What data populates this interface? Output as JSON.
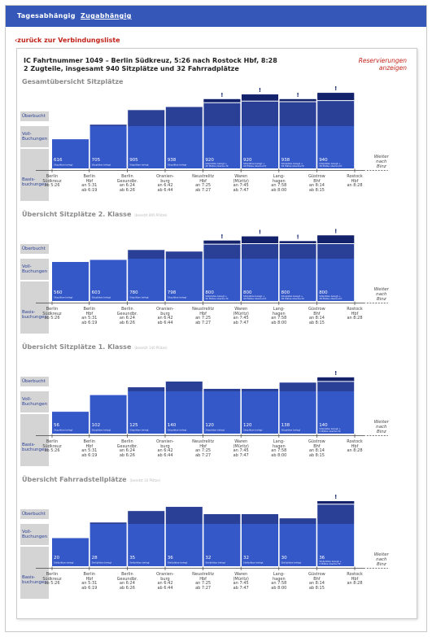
{
  "nav": {
    "tabs": [
      {
        "label": "Tagesabhängig",
        "active": false
      },
      {
        "label": "Zugabhängig",
        "active": true
      }
    ]
  },
  "back_link": "‹zurück zur Verbindungsliste",
  "header": {
    "line1": "IC Fahrtnummer 1049 – Berlin Südkreuz, 5:26 nach Rostock Hbf, 8:28",
    "line2": "2 Zugteile, insgesamt 940 Sitzplätze und 32 Fahrradplätze",
    "reserve_link_1": "Reservierungen",
    "reserve_link_2": "anzeigen"
  },
  "bands": {
    "ueberbucht": "Überbucht",
    "voll_1": "Voll-",
    "voll_2": "Buchungen",
    "basis_1": "Basis-",
    "basis_2": "buchungen"
  },
  "weiter": [
    "Weiter",
    "nach",
    "Binz"
  ],
  "excl_mark": "!",
  "stations": [
    {
      "n1": "Berlin",
      "n2": "Südkreuz",
      "t1": "ab 5:26",
      "t2": ""
    },
    {
      "n1": "Berlin",
      "n2": "Hbf",
      "t1": "an 5:31",
      "t2": "ab 6:19"
    },
    {
      "n1": "Berlin",
      "n2": "Gesundbr.",
      "t1": "an 6:24",
      "t2": "ab 6:26"
    },
    {
      "n1": "Oranien-",
      "n2": "burg",
      "t1": "an 6:42",
      "t2": "ab 6:44"
    },
    {
      "n1": "Neustrelitz",
      "n2": "Hbf",
      "t1": "an 7:25",
      "t2": "ab 7:27"
    },
    {
      "n1": "Waren",
      "n2": "(Müritz)",
      "t1": "an 7:45",
      "t2": "ab 7:47"
    },
    {
      "n1": "Lang-",
      "n2": "hagen",
      "t1": "an 7:58",
      "t2": "ab 8:00"
    },
    {
      "n1": "Güstrow",
      "n2": "Bhf",
      "t1": "an 8:14",
      "t2": "ab 8:15"
    },
    {
      "n1": "Rostock",
      "n2": "Hbf",
      "t1": "an 8:28",
      "t2": ""
    }
  ],
  "colors": {
    "base": "#3558c8",
    "full": "#2a3f96",
    "over": "#13226a",
    "band": "#d4d4d4"
  },
  "sections": [
    {
      "title": "Gesamtübersicht Sitzplätze",
      "subtitle": "",
      "bars": [
        {
          "value": "616",
          "l1": "Sitzplätze belegt",
          "l2": "",
          "level": 0.56,
          "over": 0
        },
        {
          "value": "705",
          "l1": "Sitzplätze belegt",
          "l2": "",
          "level": 0.84,
          "over": 0
        },
        {
          "value": "905",
          "l1": "Sitzplätze belegt",
          "l2": "",
          "level": 1.12,
          "over": 0
        },
        {
          "value": "938",
          "l1": "Sitzplätze belegt",
          "l2": "",
          "level": 1.18,
          "over": 0
        },
        {
          "value": "920",
          "l1": "Sitzplätze belegt +",
          "l2": "40 Plätze überbucht",
          "level": 1.33,
          "over": 0.06
        },
        {
          "value": "920",
          "l1": "Sitzplätze belegt +",
          "l2": "40 Plätze überbucht",
          "level": 1.42,
          "over": 0.12
        },
        {
          "value": "938",
          "l1": "Sitzplätze belegt +",
          "l2": "38 Plätze überbucht",
          "level": 1.33,
          "over": 0.04
        },
        {
          "value": "940",
          "l1": "Sitzplätze belegt +",
          "l2": "38 Plätze überbucht",
          "level": 1.45,
          "over": 0.14
        }
      ]
    },
    {
      "title": "Übersicht Sitzplätze 2. Klasse",
      "subtitle": "(besetzt 800 Plätze)",
      "bars": [
        {
          "value": "560",
          "l1": "Sitzplätze belegt",
          "l2": "",
          "level": 0.75,
          "over": 0
        },
        {
          "value": "603",
          "l1": "Sitzplätze belegt",
          "l2": "",
          "level": 0.79,
          "over": 0
        },
        {
          "value": "780",
          "l1": "Sitzplätze belegt",
          "l2": "",
          "level": 0.98,
          "over": 0
        },
        {
          "value": "798",
          "l1": "Sitzplätze belegt",
          "l2": "",
          "level": 0.95,
          "over": 0
        },
        {
          "value": "800",
          "l1": "Sitzplätze belegt +",
          "l2": "40 Plätze überbucht",
          "level": 1.16,
          "over": 0.06
        },
        {
          "value": "800",
          "l1": "Sitzplätze belegt +",
          "l2": "40 Plätze überbucht",
          "level": 1.24,
          "over": 0.13
        },
        {
          "value": "800",
          "l1": "Sitzplätze belegt +",
          "l2": "38 Plätze überbucht",
          "level": 1.15,
          "over": 0.04
        },
        {
          "value": "800",
          "l1": "Sitzplätze belegt +",
          "l2": "38 Plätze überbucht",
          "level": 1.26,
          "over": 0.15
        }
      ]
    },
    {
      "title": "Übersicht Sitzplätze 1. Klasse",
      "subtitle": "(besetzt 140 Plätze)",
      "bars": [
        {
          "value": "56",
          "l1": "Sitzplätze belegt",
          "l2": "",
          "level": 0.42,
          "over": 0
        },
        {
          "value": "102",
          "l1": "Sitzplätze belegt",
          "l2": "",
          "level": 0.74,
          "over": 0
        },
        {
          "value": "125",
          "l1": "Sitzplätze belegt",
          "l2": "",
          "level": 0.89,
          "over": 0
        },
        {
          "value": "140",
          "l1": "Sitzplätze belegt",
          "l2": "",
          "level": 1.0,
          "over": 0
        },
        {
          "value": "120",
          "l1": "Sitzplätze belegt",
          "l2": "",
          "level": 0.86,
          "over": 0
        },
        {
          "value": "120",
          "l1": "Sitzplätze belegt",
          "l2": "",
          "level": 0.86,
          "over": 0
        },
        {
          "value": "138",
          "l1": "Sitzplätze belegt",
          "l2": "",
          "level": 0.98,
          "over": 0
        },
        {
          "value": "140",
          "l1": "Sitzplätze belegt +",
          "l2": "3 Plätze überbucht",
          "level": 1.08,
          "over": 0.07
        }
      ]
    },
    {
      "title": "Übersicht Fahrradstellplätze",
      "subtitle": "(besetzt 32 Plätze)",
      "bars": [
        {
          "value": "20",
          "l1": "Stellplätze belegt",
          "l2": "",
          "level": 0.54,
          "over": 0
        },
        {
          "value": "28",
          "l1": "Stellplätze belegt",
          "l2": "",
          "level": 0.84,
          "over": 0
        },
        {
          "value": "35",
          "l1": "Stellplätze belegt",
          "l2": "",
          "level": 1.06,
          "over": 0
        },
        {
          "value": "36",
          "l1": "Stellplätze belegt",
          "l2": "",
          "level": 1.14,
          "over": 0
        },
        {
          "value": "32",
          "l1": "Stellplätze belegt",
          "l2": "",
          "level": 1.0,
          "over": 0
        },
        {
          "value": "32",
          "l1": "Stellplätze belegt",
          "l2": "",
          "level": 1.0,
          "over": 0
        },
        {
          "value": "30",
          "l1": "Stellplätze belegt",
          "l2": "",
          "level": 0.92,
          "over": 0
        },
        {
          "value": "36",
          "l1": "Stellplätze belegt +",
          "l2": "4 Plätze überbucht",
          "level": 1.25,
          "over": 0.05
        }
      ]
    }
  ]
}
